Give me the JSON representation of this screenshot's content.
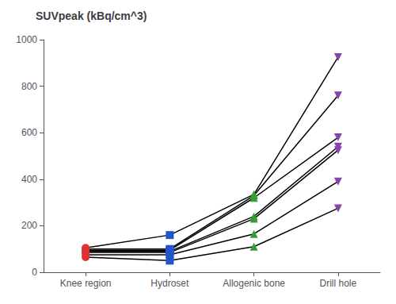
{
  "chart_data": {
    "type": "line",
    "title": "SUVpeak (kBq/cm^3)",
    "categories": [
      "Knee region",
      "Hydroset",
      "Allogenic bone",
      "Drill hole"
    ],
    "series": [
      {
        "values": [
          65,
          50,
          110,
          275
        ]
      },
      {
        "values": [
          75,
          75,
          165,
          390
        ]
      },
      {
        "values": [
          85,
          85,
          230,
          525
        ]
      },
      {
        "values": [
          90,
          90,
          240,
          540
        ]
      },
      {
        "values": [
          95,
          95,
          320,
          580
        ]
      },
      {
        "values": [
          100,
          100,
          330,
          760
        ]
      },
      {
        "values": [
          105,
          160,
          335,
          925
        ]
      }
    ],
    "color": "#000000",
    "colors": [
      "#e03030",
      "#2255cc",
      "#30a030",
      "#8844aa"
    ],
    "ylim": [
      0,
      1000
    ],
    "yticks": [
      0,
      200,
      400,
      600,
      800,
      1000
    ],
    "grid": false
  }
}
